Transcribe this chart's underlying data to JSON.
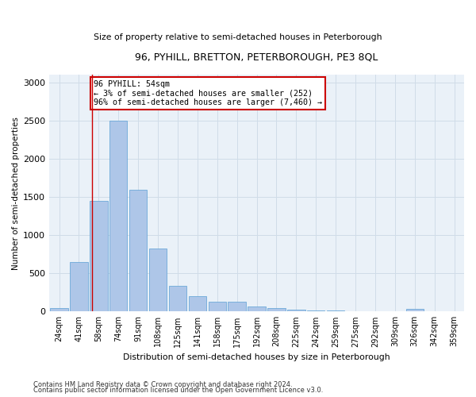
{
  "title": "96, PYHILL, BRETTON, PETERBOROUGH, PE3 8QL",
  "subtitle": "Size of property relative to semi-detached houses in Peterborough",
  "xlabel_dist": "Distribution of semi-detached houses by size in Peterborough",
  "ylabel": "Number of semi-detached properties",
  "footer1": "Contains HM Land Registry data © Crown copyright and database right 2024.",
  "footer2": "Contains public sector information licensed under the Open Government Licence v3.0.",
  "bin_labels": [
    "24sqm",
    "41sqm",
    "58sqm",
    "74sqm",
    "91sqm",
    "108sqm",
    "125sqm",
    "141sqm",
    "158sqm",
    "175sqm",
    "192sqm",
    "208sqm",
    "225sqm",
    "242sqm",
    "259sqm",
    "275sqm",
    "292sqm",
    "309sqm",
    "326sqm",
    "342sqm",
    "359sqm"
  ],
  "bar_heights": [
    50,
    650,
    1450,
    2500,
    1600,
    830,
    340,
    200,
    130,
    130,
    70,
    40,
    25,
    15,
    10,
    5,
    3,
    2,
    30,
    0,
    0
  ],
  "bar_color": "#aec6e8",
  "bar_edge_color": "#5a9fd4",
  "grid_color": "#d0dce8",
  "background_color": "#eaf1f8",
  "red_line_x": 1.65,
  "annotation_text": "96 PYHILL: 54sqm\n← 3% of semi-detached houses are smaller (252)\n96% of semi-detached houses are larger (7,460) →",
  "annotation_box_color": "#ffffff",
  "annotation_border_color": "#cc0000",
  "ylim": [
    0,
    3100
  ],
  "yticks": [
    0,
    500,
    1000,
    1500,
    2000,
    2500,
    3000
  ]
}
